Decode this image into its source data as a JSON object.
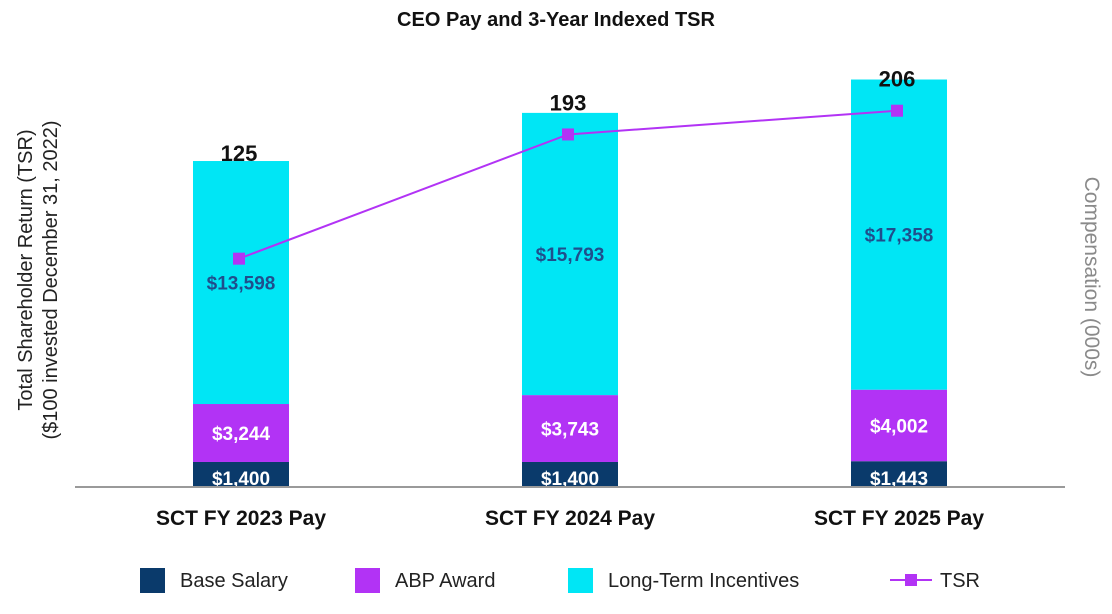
{
  "chart_data": {
    "type": "bar",
    "stacked": true,
    "title": "CEO Pay and 3-Year Indexed TSR",
    "ylabel_left_line1": "Total Shareholder Return (TSR)",
    "ylabel_left_line2": "($100 invested December 31, 2022)",
    "ylabel_right": "Compensation (000s)",
    "categories": [
      "SCT FY 2023 Pay",
      "SCT FY 2024 Pay",
      "SCT FY 2025 Pay"
    ],
    "series": [
      {
        "name": "Base Salary",
        "color": "#0a3a6b",
        "label_color": "#ffffff",
        "values": [
          1400,
          1400,
          1443
        ],
        "labels": [
          "$1,400",
          "$1,400",
          "$1,443"
        ]
      },
      {
        "name": "ABP Award",
        "color": "#b233f5",
        "label_color": "#ffffff",
        "values": [
          3244,
          3743,
          4002
        ],
        "labels": [
          "$3,244",
          "$3,743",
          "$4,002"
        ]
      },
      {
        "name": "Long-Term Incentives",
        "color": "#00e6f5",
        "label_color": "#1f4e8c",
        "values": [
          13598,
          15793,
          17358
        ],
        "labels": [
          "$13,598",
          "$15,793",
          "$17,358"
        ]
      }
    ],
    "line_series": {
      "name": "TSR",
      "color": "#b233f5",
      "values": [
        125,
        193,
        206
      ],
      "labels": [
        "125",
        "193",
        "206"
      ],
      "ylim": [
        0,
        225
      ]
    },
    "ylim": [
      0,
      23000
    ],
    "legend_position": "bottom",
    "grid": false
  }
}
